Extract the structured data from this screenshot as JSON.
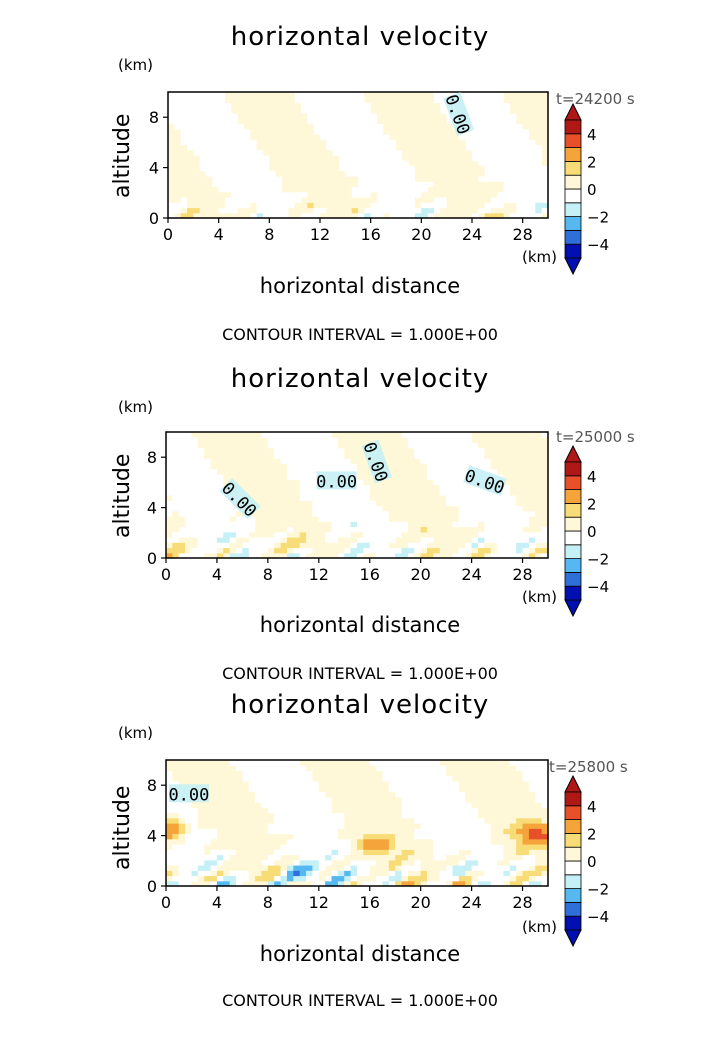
{
  "colorbar": {
    "labels": [
      "4",
      "2",
      "0",
      "−2",
      "−4"
    ],
    "colors": [
      "#0010b0",
      "#2f6fd8",
      "#55b8f0",
      "#c5f0f5",
      "#ffffff",
      "#fff8d8",
      "#f7dc78",
      "#f4a43a",
      "#e8502a",
      "#b01818"
    ]
  },
  "chart_data": [
    {
      "type": "heatmap",
      "title": "horizontal velocity",
      "time_label": "t=24200 s",
      "xlabel": "horizontal distance",
      "ylabel": "altitude",
      "x_unit": "(km)",
      "y_unit": "(km)",
      "xlim": [
        0,
        30
      ],
      "ylim": [
        0,
        10
      ],
      "x_ticks": [
        "0",
        "4",
        "8",
        "12",
        "16",
        "20",
        "24",
        "28"
      ],
      "y_ticks": [
        "0",
        "4",
        "8"
      ],
      "contour_label": "0.00",
      "contour_interval": "CONTOUR INTERVAL = 1.000E+00",
      "colorbar_range": [
        -4,
        4
      ]
    },
    {
      "type": "heatmap",
      "title": "horizontal velocity",
      "time_label": "t=25000 s",
      "xlabel": "horizontal distance",
      "ylabel": "altitude",
      "x_unit": "(km)",
      "y_unit": "(km)",
      "xlim": [
        0,
        30
      ],
      "ylim": [
        0,
        10
      ],
      "x_ticks": [
        "0",
        "4",
        "8",
        "12",
        "16",
        "20",
        "24",
        "28"
      ],
      "y_ticks": [
        "0",
        "4",
        "8"
      ],
      "contour_label": "0.00",
      "contour_interval": "CONTOUR INTERVAL = 1.000E+00",
      "colorbar_range": [
        -4,
        4
      ]
    },
    {
      "type": "heatmap",
      "title": "horizontal velocity",
      "time_label": "t=25800 s",
      "xlabel": "horizontal distance",
      "ylabel": "altitude",
      "x_unit": "(km)",
      "y_unit": "(km)",
      "xlim": [
        0,
        30
      ],
      "ylim": [
        0,
        10
      ],
      "x_ticks": [
        "0",
        "4",
        "8",
        "12",
        "16",
        "20",
        "24",
        "28"
      ],
      "y_ticks": [
        "0",
        "4",
        "8"
      ],
      "contour_label": "0.00",
      "contour_interval": "CONTOUR INTERVAL = 1.000E+00",
      "colorbar_range": [
        -4,
        4
      ]
    }
  ]
}
